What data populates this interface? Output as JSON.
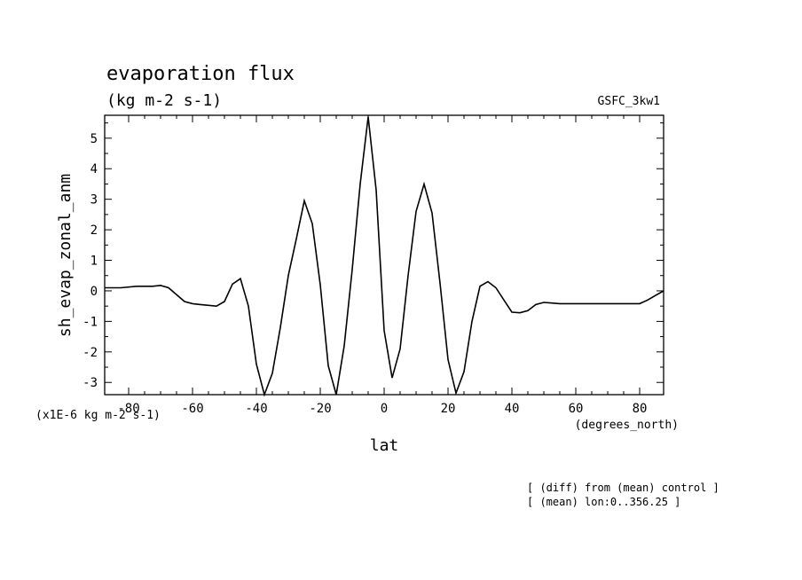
{
  "chart_data": {
    "type": "line",
    "title": "evaporation flux",
    "subtitle": "(kg m-2 s-1)",
    "run_label": "GSFC_3kw1",
    "ylabel": "sh_evap_zonal_anm",
    "xlabel": "lat",
    "x_units": "(degrees_north)",
    "y_scale_note": "(x1E-6 kg m-2 s-1)",
    "notes": [
      "[ (diff) from (mean) control ]",
      "[ (mean) lon:0..356.25 ]"
    ],
    "xlim": [
      -87.5,
      87.5
    ],
    "ylim": [
      -3.4,
      5.75
    ],
    "x_ticks": [
      -80,
      -60,
      -40,
      -20,
      0,
      20,
      40,
      60,
      80
    ],
    "x_tick_labels": [
      "-80",
      "-60",
      "-40",
      "-20",
      "0",
      "20",
      "40",
      "60",
      "80"
    ],
    "y_ticks": [
      -3,
      -2,
      -1,
      0,
      1,
      2,
      3,
      4,
      5
    ],
    "y_tick_labels": [
      "-3",
      "-2",
      "-1",
      "0",
      "1",
      "2",
      "3",
      "4",
      "5"
    ],
    "grid": false,
    "series": [
      {
        "color": "#000000",
        "x": [
          -87.5,
          -82.5,
          -77.5,
          -72.5,
          -70,
          -67.5,
          -62.5,
          -60,
          -57.5,
          -52.5,
          -50,
          -47.5,
          -45,
          -42.5,
          -40,
          -37.5,
          -35,
          -32.5,
          -30,
          -27.5,
          -25,
          -22.5,
          -20,
          -17.5,
          -15,
          -12.5,
          -10,
          -7.5,
          -5,
          -2.5,
          0,
          2.5,
          5,
          7.5,
          10,
          12.5,
          15,
          17.5,
          20,
          22.5,
          25,
          27.5,
          30,
          32.5,
          35,
          37.5,
          40,
          42.5,
          45,
          47.5,
          50,
          52.5,
          55,
          57.5,
          60,
          62.5,
          65,
          67.5,
          70,
          72.5,
          75,
          77.5,
          80,
          82.5,
          85,
          87.5
        ],
        "y": [
          0.1,
          0.1,
          0.15,
          0.15,
          0.18,
          0.1,
          -0.35,
          -0.42,
          -0.45,
          -0.5,
          -0.35,
          0.22,
          0.4,
          -0.5,
          -2.4,
          -3.4,
          -2.7,
          -1.2,
          0.5,
          1.7,
          2.95,
          2.2,
          0.2,
          -2.45,
          -3.4,
          -1.8,
          0.7,
          3.5,
          5.7,
          3.3,
          -1.3,
          -2.85,
          -1.9,
          0.5,
          2.6,
          3.5,
          2.55,
          0.25,
          -2.25,
          -3.35,
          -2.65,
          -1.0,
          0.15,
          0.3,
          0.1,
          -0.3,
          -0.7,
          -0.72,
          -0.65,
          -0.45,
          -0.38,
          -0.4,
          -0.42,
          -0.42,
          -0.42,
          -0.42,
          -0.42,
          -0.42,
          -0.42,
          -0.42,
          -0.42,
          -0.42,
          -0.42,
          -0.3,
          -0.15,
          0.0
        ]
      }
    ]
  }
}
